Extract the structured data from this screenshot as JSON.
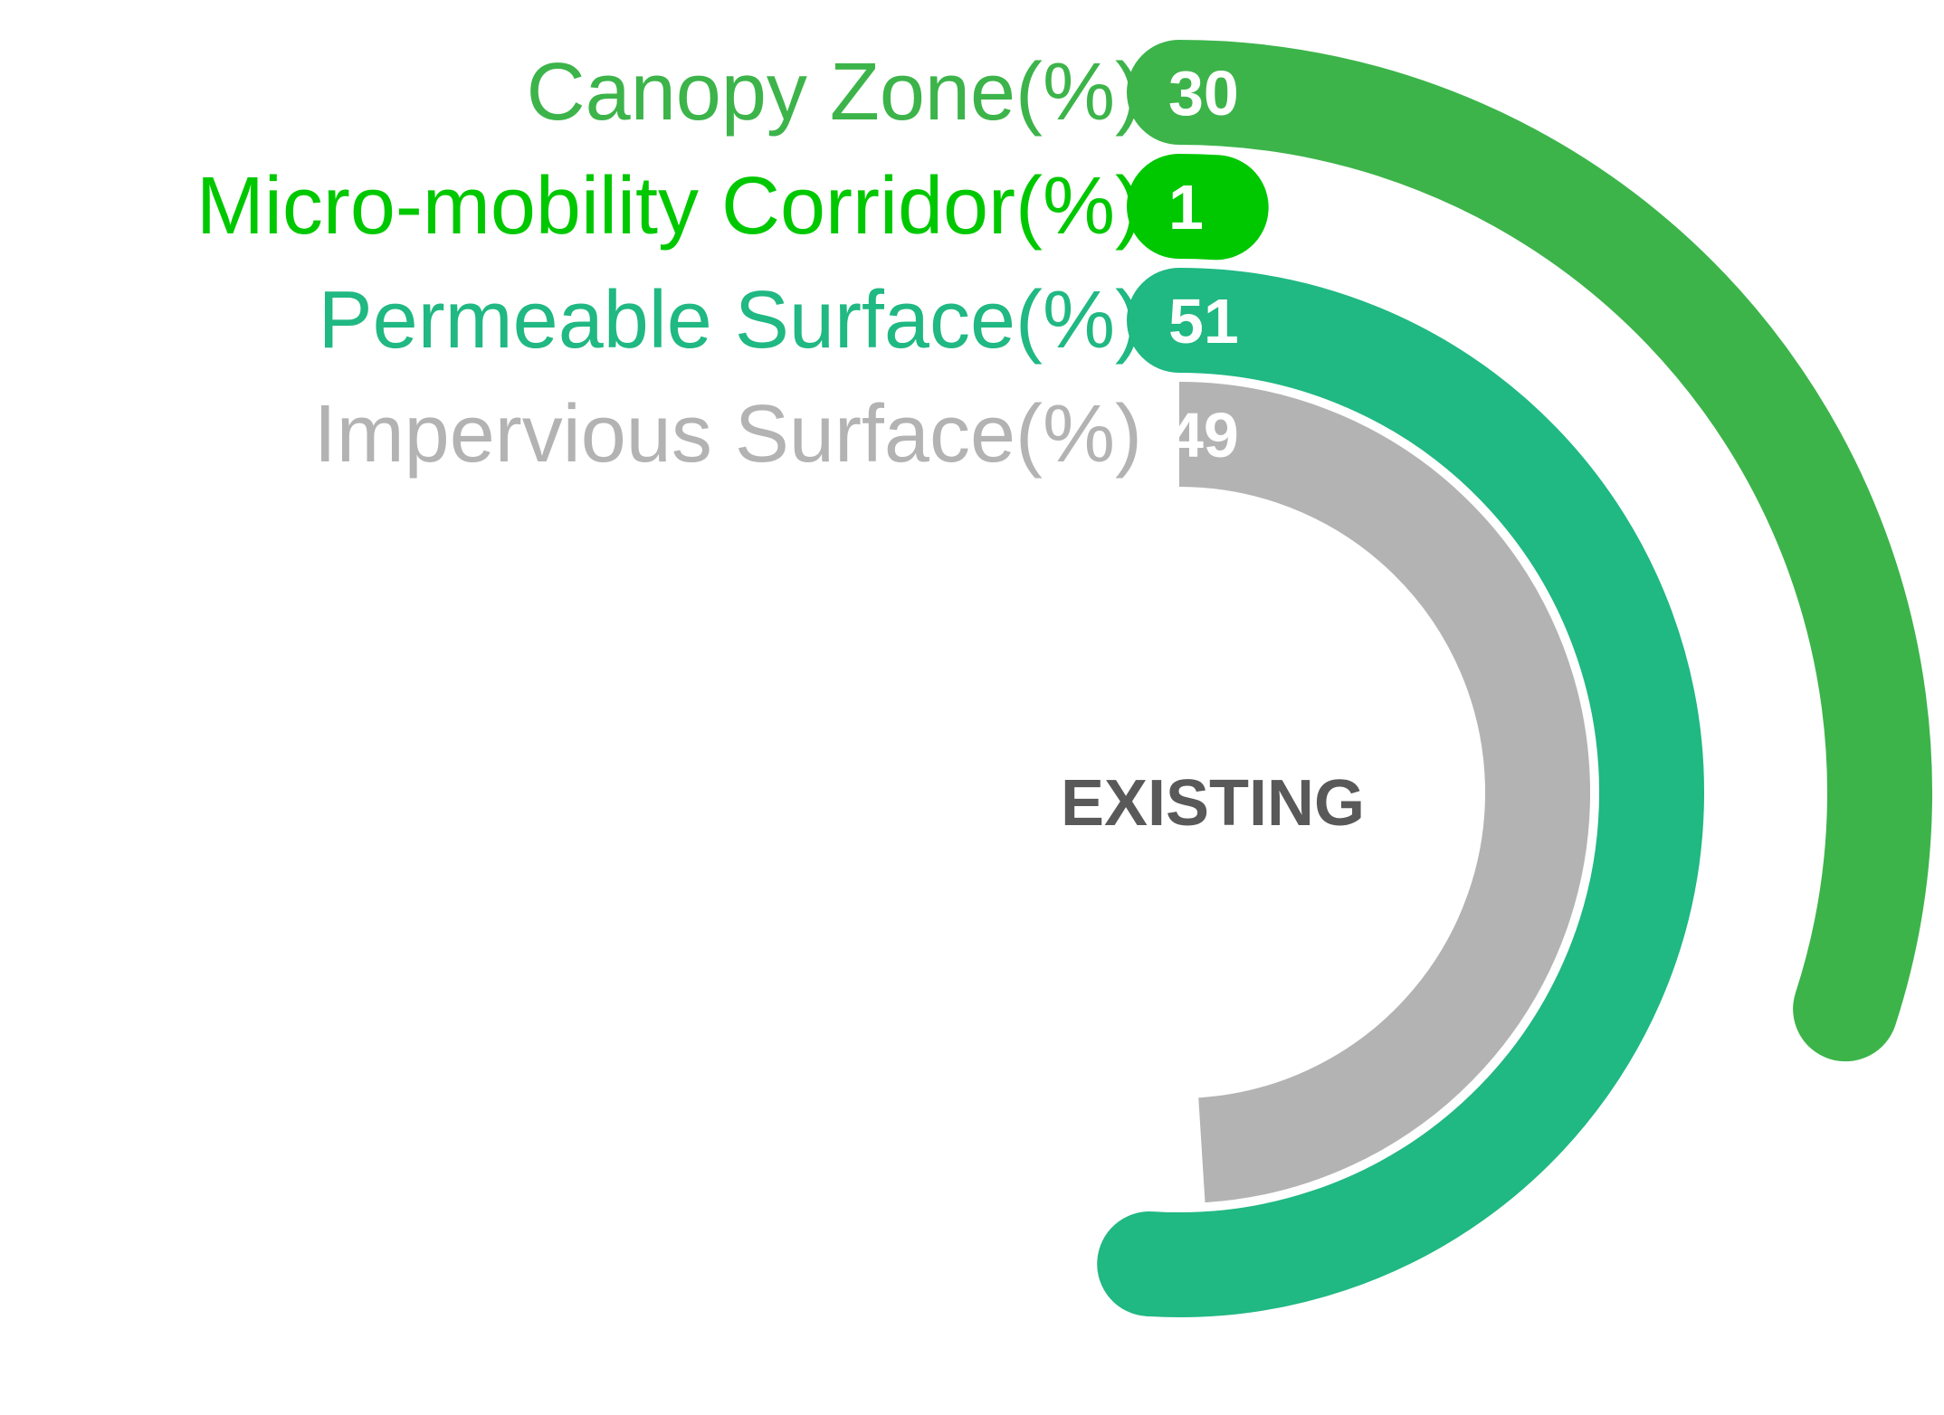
{
  "chart_data": {
    "type": "radial-bar",
    "center_label": "EXISTING",
    "value_max": 100,
    "series": [
      {
        "name": "Canopy Zone(%)",
        "value": 30,
        "color": "#3cb44a"
      },
      {
        "name": "Micro-mobility Corridor(%)",
        "value": 1,
        "color": "#00c800"
      },
      {
        "name": "Permeable Surface(%)",
        "value": 51,
        "color": "#20b883"
      },
      {
        "name": "Impervious Surface(%)",
        "value": 49,
        "color": "#b3b3b3"
      }
    ]
  }
}
